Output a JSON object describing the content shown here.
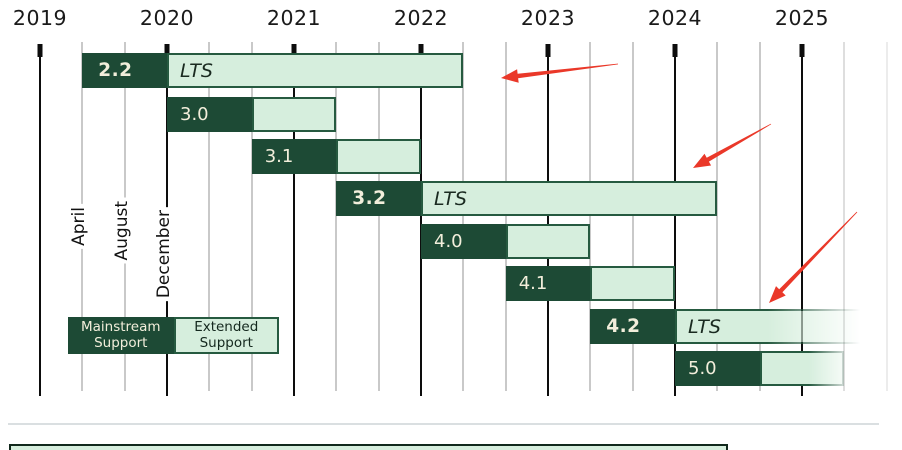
{
  "chart_data": {
    "type": "gantt",
    "description": "Software version support timeline",
    "x_axis": {
      "years": [
        "2019",
        "2020",
        "2021",
        "2022",
        "2023",
        "2024",
        "2025"
      ],
      "minor_month_labels": [
        "April",
        "August",
        "December"
      ],
      "range": [
        2019.0,
        2025.667
      ],
      "grid": "on"
    },
    "lts_label": "LTS",
    "rows": [
      {
        "version": "2.2",
        "lts": true,
        "mainstream": [
          2019.333,
          2020.0
        ],
        "extended": [
          2020.0,
          2022.333
        ],
        "fade": "none"
      },
      {
        "version": "3.0",
        "lts": false,
        "mainstream": [
          2020.0,
          2020.667
        ],
        "extended": [
          2020.667,
          2021.333
        ],
        "fade": "none"
      },
      {
        "version": "3.1",
        "lts": false,
        "mainstream": [
          2020.667,
          2021.333
        ],
        "extended": [
          2021.333,
          2022.0
        ],
        "fade": "none"
      },
      {
        "version": "3.2",
        "lts": true,
        "mainstream": [
          2021.333,
          2022.0
        ],
        "extended": [
          2022.0,
          2024.333
        ],
        "fade": "none"
      },
      {
        "version": "4.0",
        "lts": false,
        "mainstream": [
          2022.0,
          2022.667
        ],
        "extended": [
          2022.667,
          2023.333
        ],
        "fade": "none"
      },
      {
        "version": "4.1",
        "lts": false,
        "mainstream": [
          2022.667,
          2023.333
        ],
        "extended": [
          2023.333,
          2024.0
        ],
        "fade": "none"
      },
      {
        "version": "4.2",
        "lts": true,
        "mainstream": [
          2023.333,
          2024.0
        ],
        "extended": [
          2024.0,
          2025.52
        ],
        "fade": "out"
      },
      {
        "version": "5.0",
        "lts": false,
        "mainstream": [
          2024.0,
          2024.667
        ],
        "extended": [
          2024.667,
          2025.333
        ],
        "fade": "edge"
      }
    ],
    "legend": {
      "mainstream_label": "Mainstream Support",
      "extended_label": "Extended Support",
      "position": "bottom-left"
    },
    "annotations": {
      "arrows": [
        {
          "from": [
            618,
            64
          ],
          "to": [
            501,
            78
          ]
        },
        {
          "from": [
            771,
            124
          ],
          "to": [
            693,
            168
          ]
        },
        {
          "from": [
            857,
            212
          ],
          "to": [
            769,
            303
          ]
        }
      ]
    },
    "colors": {
      "mainstream_fill": "#1d4a35",
      "extended_fill": "#d6eedd",
      "bar_border": "#265a40",
      "bar_text_light": "#f2eedb",
      "bar_text_dark": "#1a2a20",
      "grid_major": "#0d0d0d",
      "grid_minor": "#c9c9c9",
      "arrow_red": "#ea3829"
    }
  }
}
